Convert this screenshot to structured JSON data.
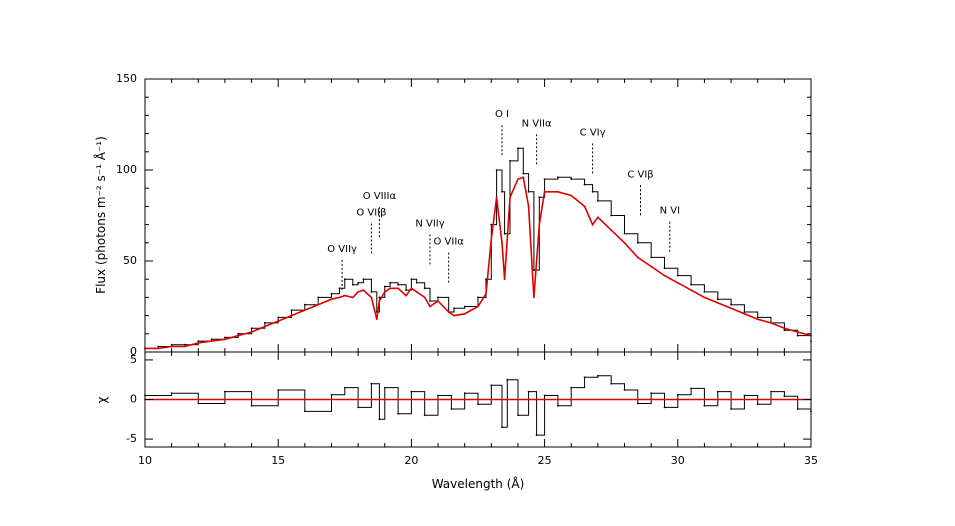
{
  "chart_data": [
    {
      "type": "line",
      "panel": "spectrum",
      "xlabel": "Wavelength (Å)",
      "ylabel": "Flux (photons m⁻² s⁻¹ Å⁻¹)",
      "xlim": [
        10,
        35
      ],
      "ylim": [
        0,
        150
      ],
      "xticks": [
        10,
        15,
        20,
        25,
        30,
        35
      ],
      "yticks": [
        0,
        50,
        100,
        150
      ],
      "series": [
        {
          "color": "#000000",
          "style": "histogram",
          "x": [
            10,
            10.5,
            11,
            11.5,
            12,
            12.5,
            13,
            13.5,
            14,
            14.5,
            15,
            15.5,
            16,
            16.5,
            17,
            17.3,
            17.5,
            17.8,
            18,
            18.2,
            18.5,
            18.7,
            18.8,
            19,
            19.2,
            19.5,
            19.8,
            20,
            20.2,
            20.5,
            20.7,
            21,
            21.4,
            21.6,
            22,
            22.5,
            22.8,
            23,
            23.2,
            23.4,
            23.5,
            23.7,
            24,
            24.2,
            24.4,
            24.6,
            24.8,
            25,
            25.5,
            26,
            26.5,
            26.8,
            27,
            27.5,
            28,
            28.5,
            29,
            29.5,
            30,
            30.5,
            31,
            31.5,
            32,
            32.5,
            33,
            33.5,
            34,
            34.5,
            35
          ],
          "y": [
            2,
            3,
            4,
            4,
            6,
            7,
            8,
            10,
            13,
            16,
            19,
            23,
            26,
            30,
            32,
            35,
            40,
            37,
            38,
            40,
            33,
            22,
            30,
            36,
            38,
            37,
            34,
            40,
            38,
            35,
            28,
            30,
            22,
            24,
            25,
            30,
            40,
            70,
            100,
            88,
            65,
            105,
            112,
            98,
            88,
            45,
            85,
            95,
            96,
            95,
            92,
            88,
            83,
            75,
            65,
            60,
            52,
            46,
            42,
            37,
            33,
            29,
            26,
            22,
            19,
            16,
            12,
            9,
            6
          ]
        },
        {
          "color": "#e00000",
          "style": "line",
          "x": [
            10,
            10.5,
            11,
            11.5,
            12,
            12.5,
            13,
            13.5,
            14,
            14.5,
            15,
            15.5,
            16,
            16.5,
            17,
            17.3,
            17.5,
            17.8,
            18,
            18.2,
            18.5,
            18.7,
            18.8,
            19,
            19.2,
            19.5,
            19.8,
            20,
            20.2,
            20.5,
            20.7,
            21,
            21.4,
            21.6,
            22,
            22.5,
            22.8,
            23,
            23.2,
            23.4,
            23.5,
            23.7,
            24,
            24.2,
            24.4,
            24.6,
            24.8,
            25,
            25.5,
            26,
            26.5,
            26.8,
            27,
            27.5,
            28,
            28.5,
            29,
            29.5,
            30,
            30.5,
            31,
            31.5,
            32,
            32.5,
            33,
            33.5,
            34,
            34.5,
            35
          ],
          "y": [
            2,
            2,
            3,
            3,
            5,
            6,
            7,
            9,
            11,
            14,
            17,
            20,
            23,
            26,
            29,
            30,
            31,
            30,
            33,
            34,
            30,
            18,
            28,
            33,
            35,
            35,
            31,
            35,
            33,
            30,
            25,
            28,
            22,
            20,
            21,
            25,
            32,
            62,
            85,
            60,
            40,
            85,
            95,
            96,
            80,
            30,
            70,
            88,
            88,
            86,
            80,
            70,
            74,
            67,
            60,
            52,
            47,
            42,
            38,
            34,
            30,
            27,
            24,
            21,
            18,
            16,
            13,
            11,
            9
          ]
        }
      ],
      "annotations": [
        {
          "label": "O VIIγ",
          "x": 17.4,
          "y": 55
        },
        {
          "label": "O VIIβ",
          "x": 18.5,
          "y": 75
        },
        {
          "label": "O VIIIα",
          "x": 18.8,
          "y": 84
        },
        {
          "label": "N VIIγ",
          "x": 20.7,
          "y": 69
        },
        {
          "label": "O VIIα",
          "x": 21.4,
          "y": 59
        },
        {
          "label": "O I",
          "x": 23.4,
          "y": 129
        },
        {
          "label": "N VIIα",
          "x": 24.7,
          "y": 124
        },
        {
          "label": "C VIγ",
          "x": 26.8,
          "y": 119
        },
        {
          "label": "C VIβ",
          "x": 28.6,
          "y": 96
        },
        {
          "label": "N VI",
          "x": 29.7,
          "y": 76
        }
      ]
    },
    {
      "type": "line",
      "panel": "residuals",
      "xlabel": "Wavelength (Å)",
      "ylabel": "χ",
      "xlim": [
        10,
        35
      ],
      "ylim": [
        -6,
        6
      ],
      "yticks": [
        -5,
        0,
        5
      ],
      "series": [
        {
          "color": "#000000",
          "style": "histogram",
          "x": [
            10,
            11,
            12,
            13,
            14,
            15,
            16,
            17,
            17.5,
            18,
            18.5,
            18.8,
            19,
            19.5,
            20,
            20.5,
            21,
            21.5,
            22,
            22.5,
            23,
            23.4,
            23.6,
            24,
            24.4,
            24.7,
            25,
            25.5,
            26,
            26.5,
            27,
            27.5,
            28,
            28.5,
            29,
            29.5,
            30,
            30.5,
            31,
            31.5,
            32,
            32.5,
            33,
            33.5,
            34,
            34.5,
            35
          ],
          "y": [
            0.5,
            0.8,
            -0.5,
            1.0,
            -0.8,
            1.2,
            -1.5,
            0.6,
            1.5,
            -1.0,
            2.0,
            -2.5,
            1.5,
            -1.8,
            1.0,
            -2.0,
            0.5,
            -1.2,
            0.8,
            -0.6,
            1.8,
            -3.5,
            2.5,
            -2.0,
            1.0,
            -4.5,
            0.5,
            -0.8,
            1.5,
            2.8,
            3.0,
            2.0,
            1.2,
            -0.5,
            0.8,
            -1.0,
            0.6,
            1.4,
            -0.8,
            1.0,
            -1.2,
            0.5,
            -0.6,
            1.0,
            0.4,
            -1.2,
            -1.5
          ]
        },
        {
          "color": "#e00000",
          "style": "line",
          "x": [
            10,
            35
          ],
          "y": [
            0,
            0
          ]
        }
      ]
    }
  ]
}
